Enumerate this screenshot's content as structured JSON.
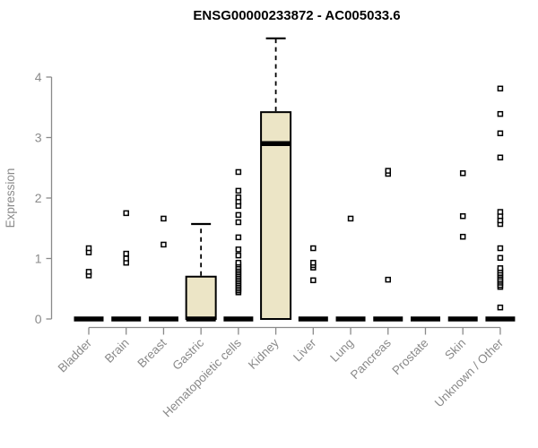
{
  "chart_data": {
    "type": "boxplot",
    "title": "ENSG00000233872 - AC005033.6",
    "ylabel": "Expression",
    "xlabel": "",
    "legend": "none",
    "grid": false,
    "y_ticks": [
      0,
      1,
      2,
      3,
      4
    ],
    "y_range": [
      0,
      4.7
    ],
    "categories": [
      "Bladder",
      "Brain",
      "Breast",
      "Gastric",
      "Hematopoietic cells",
      "Kidney",
      "Liver",
      "Lung",
      "Pancreas",
      "Prostate",
      "Skin",
      "Unknown / Other"
    ],
    "boxes": [
      {
        "tissue": "Bladder",
        "q1": 0,
        "median": 0,
        "q3": 0,
        "whisker_low": 0,
        "whisker_high": 0,
        "outliers": [
          0.72,
          0.78,
          1.1,
          1.17
        ]
      },
      {
        "tissue": "Brain",
        "q1": 0,
        "median": 0,
        "q3": 0,
        "whisker_low": 0,
        "whisker_high": 0,
        "outliers": [
          0.93,
          1.0,
          1.08,
          1.75
        ]
      },
      {
        "tissue": "Breast",
        "q1": 0,
        "median": 0,
        "q3": 0,
        "whisker_low": 0,
        "whisker_high": 0,
        "outliers": [
          1.23,
          1.66
        ]
      },
      {
        "tissue": "Gastric",
        "q1": 0,
        "median": 0,
        "q3": 0.7,
        "whisker_low": 0,
        "whisker_high": 1.57,
        "outliers": []
      },
      {
        "tissue": "Hematopoietic cells",
        "q1": 0,
        "median": 0,
        "q3": 0,
        "whisker_low": 0,
        "whisker_high": 0,
        "outliers": [
          0.44,
          0.47,
          0.5,
          0.53,
          0.56,
          0.59,
          0.62,
          0.65,
          0.68,
          0.71,
          0.74,
          0.77,
          0.8,
          0.83,
          0.86,
          0.9,
          0.93,
          1.05,
          1.15,
          1.35,
          1.6,
          1.72,
          1.87,
          1.94,
          2.01,
          2.12,
          2.43
        ]
      },
      {
        "tissue": "Kidney",
        "q1": 0,
        "median": 2.9,
        "q3": 3.42,
        "whisker_low": 0,
        "whisker_high": 4.64,
        "outliers": []
      },
      {
        "tissue": "Liver",
        "q1": 0,
        "median": 0,
        "q3": 0,
        "whisker_low": 0,
        "whisker_high": 0,
        "outliers": [
          0.64,
          0.85,
          0.89,
          0.93,
          1.17
        ]
      },
      {
        "tissue": "Lung",
        "q1": 0,
        "median": 0,
        "q3": 0,
        "whisker_low": 0,
        "whisker_high": 0,
        "outliers": [
          1.66
        ]
      },
      {
        "tissue": "Pancreas",
        "q1": 0,
        "median": 0,
        "q3": 0,
        "whisker_low": 0,
        "whisker_high": 0,
        "outliers": [
          0.65,
          2.4,
          2.45
        ]
      },
      {
        "tissue": "Prostate",
        "q1": 0,
        "median": 0,
        "q3": 0,
        "whisker_low": 0,
        "whisker_high": 0,
        "outliers": []
      },
      {
        "tissue": "Skin",
        "q1": 0,
        "median": 0,
        "q3": 0,
        "whisker_low": 0,
        "whisker_high": 0,
        "outliers": [
          1.36,
          1.7,
          2.41
        ]
      },
      {
        "tissue": "Unknown / Other",
        "q1": 0,
        "median": 0,
        "q3": 0,
        "whisker_low": 0,
        "whisker_high": 0,
        "outliers": [
          0.19,
          0.53,
          0.56,
          0.6,
          0.63,
          0.66,
          0.7,
          0.73,
          0.76,
          0.8,
          0.84,
          1.01,
          1.17,
          1.57,
          1.63,
          1.7,
          1.77,
          2.67,
          3.07,
          3.39,
          3.81
        ]
      }
    ],
    "colors": {
      "box_fill": "#ECE5C6",
      "box_stroke": "#000000",
      "median": "#000000",
      "whisker": "#000000",
      "outlier_stroke": "#000000",
      "outlier_fill": "#ffffff",
      "axis": "#8a8a8a",
      "tick_label": "#8a8a8a",
      "title": "#000000",
      "background": "#ffffff"
    }
  }
}
